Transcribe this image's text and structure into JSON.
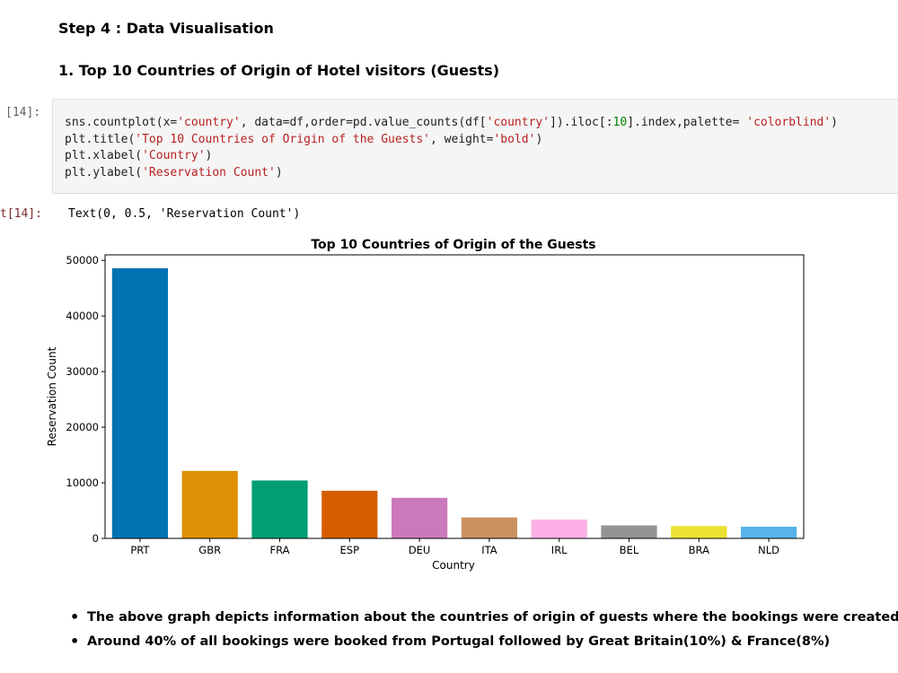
{
  "notebook": {
    "step_heading": "Step 4 : Data Visualisation",
    "sub_heading": "1. Top 10 Countries of Origin of Hotel visitors (Guests)",
    "input_prompt": "[14]:",
    "output_prompt": "t[14]:",
    "code_lines": [
      "sns.countplot(x='country', data=df,order=pd.value_counts(df['country']).iloc[:10].index,palette= 'colorblind')",
      "plt.title('Top 10 Countries of Origin of the Guests', weight='bold')",
      "plt.xlabel('Country')",
      "plt.ylabel('Reservation Count')"
    ],
    "output_text": "Text(0, 0.5, 'Reservation Count')",
    "bullets": [
      "The above graph depicts information about the countries of origin of guests where the bookings were created.",
      "Around 40% of all bookings were booked from Portugal followed by Great Britain(10%) & France(8%)"
    ]
  },
  "chart_data": {
    "type": "bar",
    "title": "Top 10 Countries of Origin of the Guests",
    "xlabel": "Country",
    "ylabel": "Reservation Count",
    "categories": [
      "PRT",
      "GBR",
      "FRA",
      "ESP",
      "DEU",
      "ITA",
      "IRL",
      "BEL",
      "BRA",
      "NLD"
    ],
    "values": [
      48600,
      12130,
      10420,
      8570,
      7290,
      3770,
      3375,
      2340,
      2225,
      2105
    ],
    "colors": [
      "#0173b2",
      "#de8f05",
      "#029e73",
      "#d55e00",
      "#cc78bc",
      "#ca9161",
      "#fbafe4",
      "#949494",
      "#ece133",
      "#56b4e9"
    ],
    "yticks": [
      "0",
      "10000",
      "20000",
      "30000",
      "40000",
      "50000"
    ],
    "ylim": [
      0,
      51000
    ],
    "grid": false,
    "legend": "none"
  }
}
